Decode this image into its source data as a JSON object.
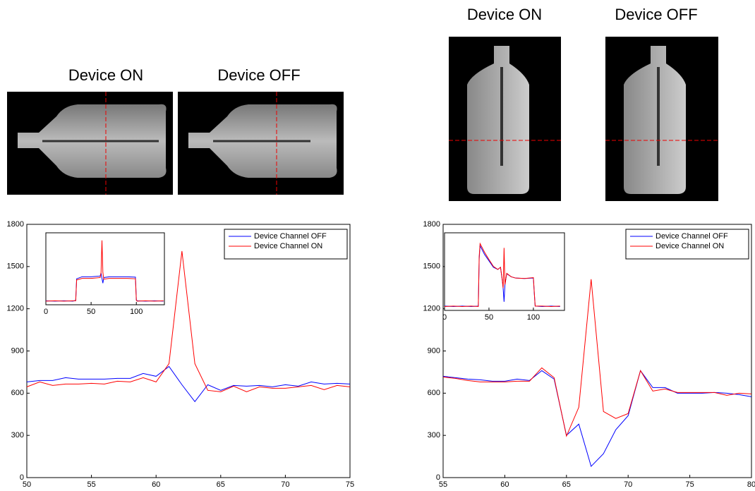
{
  "images": [
    {
      "label": "Device ON"
    },
    {
      "label": "Device OFF"
    },
    {
      "label": "Device ON"
    },
    {
      "label": "Device OFF"
    }
  ],
  "chart_data": [
    {
      "type": "line",
      "x": [
        50,
        51,
        52,
        53,
        54,
        55,
        56,
        57,
        58,
        59,
        60,
        61,
        62,
        63,
        64,
        65,
        66,
        67,
        68,
        69,
        70,
        71,
        72,
        73,
        74,
        75
      ],
      "series": [
        {
          "name": "Device Channel OFF",
          "color": "#0000ff",
          "values": [
            680,
            690,
            690,
            710,
            700,
            700,
            700,
            705,
            705,
            740,
            720,
            790,
            660,
            540,
            660,
            620,
            655,
            650,
            655,
            645,
            660,
            650,
            680,
            665,
            670,
            665
          ]
        },
        {
          "name": "Device Channel ON",
          "color": "#ff0000",
          "values": [
            645,
            680,
            655,
            665,
            665,
            670,
            665,
            685,
            680,
            710,
            680,
            810,
            1610,
            810,
            620,
            610,
            650,
            610,
            645,
            635,
            635,
            645,
            655,
            625,
            655,
            645
          ]
        }
      ],
      "xlim": [
        50,
        75
      ],
      "ylim": [
        0,
        1800
      ],
      "xticks": [
        50,
        55,
        60,
        65,
        70,
        75
      ],
      "yticks": [
        0,
        300,
        600,
        900,
        1200,
        1500,
        1800
      ],
      "legend": "upper right"
    },
    {
      "type": "line",
      "x": [
        0,
        10,
        20,
        30,
        33,
        34,
        40,
        50,
        60,
        61,
        62,
        63,
        64,
        70,
        80,
        90,
        99,
        100,
        101,
        110,
        120,
        130
      ],
      "series": [
        {
          "color": "#0000ff",
          "values": [
            100,
            90,
            100,
            90,
            110,
            650,
            700,
            700,
            720,
            790,
            660,
            540,
            680,
            700,
            700,
            700,
            690,
            120,
            100,
            90,
            100,
            90
          ]
        },
        {
          "color": "#ff0000",
          "values": [
            90,
            100,
            90,
            100,
            100,
            620,
            660,
            660,
            680,
            810,
            1610,
            810,
            640,
            660,
            660,
            660,
            650,
            110,
            90,
            100,
            90,
            100
          ]
        }
      ],
      "xlim": [
        0,
        131
      ],
      "ylim": [
        0,
        1800
      ],
      "xticks": [
        0,
        50,
        100
      ]
    },
    {
      "type": "line",
      "x": [
        55,
        56,
        57,
        58,
        59,
        60,
        61,
        62,
        63,
        64,
        65,
        66,
        67,
        68,
        69,
        70,
        71,
        72,
        73,
        74,
        75,
        76,
        77,
        78,
        79,
        80
      ],
      "series": [
        {
          "name": "Device Channel OFF",
          "color": "#0000ff",
          "values": [
            720,
            710,
            700,
            695,
            685,
            685,
            700,
            690,
            760,
            700,
            300,
            380,
            80,
            170,
            340,
            440,
            760,
            640,
            640,
            600,
            600,
            600,
            605,
            600,
            590,
            575
          ]
        },
        {
          "name": "Device Channel ON",
          "color": "#ff0000",
          "values": [
            715,
            705,
            690,
            680,
            680,
            680,
            685,
            685,
            780,
            710,
            295,
            500,
            1410,
            470,
            420,
            455,
            760,
            615,
            630,
            605,
            605,
            605,
            605,
            585,
            600,
            595
          ]
        }
      ],
      "xlim": [
        55,
        80
      ],
      "ylim": [
        0,
        1800
      ],
      "xticks": [
        55,
        60,
        65,
        70,
        75,
        80
      ],
      "yticks": [
        0,
        300,
        600,
        900,
        1200,
        1500,
        1800
      ],
      "legend": "upper right"
    },
    {
      "type": "line",
      "x": [
        0,
        10,
        20,
        30,
        38,
        39,
        40,
        45,
        50,
        55,
        60,
        63,
        65,
        66,
        67,
        68,
        70,
        75,
        80,
        90,
        100,
        101,
        102,
        110,
        120,
        130
      ],
      "series": [
        {
          "color": "#0000ff",
          "values": [
            100,
            90,
            100,
            90,
            100,
            1200,
            1500,
            1300,
            1150,
            1000,
            950,
            1000,
            700,
            500,
            200,
            600,
            850,
            780,
            750,
            740,
            750,
            400,
            100,
            90,
            100,
            90
          ]
        },
        {
          "color": "#ff0000",
          "values": [
            90,
            100,
            90,
            100,
            90,
            1250,
            1550,
            1350,
            1180,
            1020,
            950,
            1000,
            700,
            520,
            1450,
            600,
            860,
            780,
            750,
            740,
            760,
            420,
            100,
            100,
            90,
            100
          ]
        }
      ],
      "xlim": [
        0,
        135
      ],
      "ylim": [
        0,
        1800
      ],
      "xticks": [
        0,
        50,
        100
      ]
    }
  ]
}
